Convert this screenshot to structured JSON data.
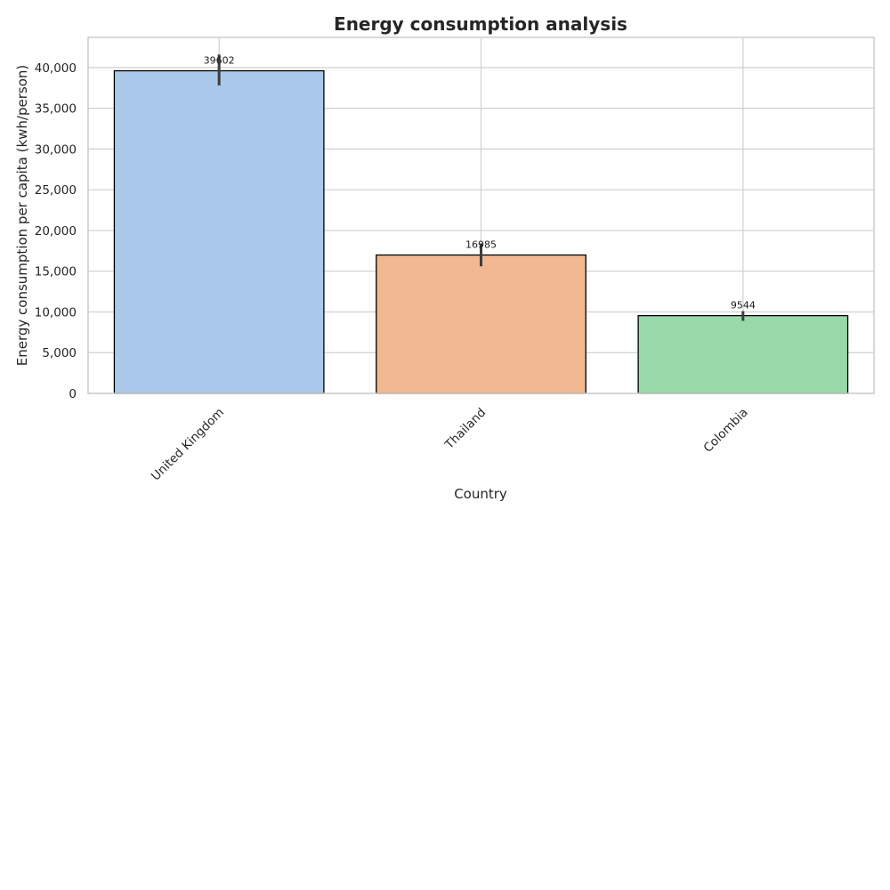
{
  "chart_data": {
    "type": "bar",
    "title": "Energy consumption analysis",
    "xlabel": "Country",
    "ylabel": "Energy consumption per capita (kwh/person)",
    "categories": [
      "United Kingdom",
      "Thailand",
      "Colombia"
    ],
    "values": [
      39602,
      16985,
      9544
    ],
    "value_labels": [
      "39602",
      "16985",
      "9544"
    ],
    "error_bars": [
      {
        "low": 37800,
        "high": 41600
      },
      {
        "low": 15600,
        "high": 18400
      },
      {
        "low": 8900,
        "high": 10100
      }
    ],
    "colors": [
      "#abc9ea",
      "#f1b892",
      "#98d9a8"
    ],
    "ylim": [
      0,
      43700
    ],
    "yticks": [
      0,
      5000,
      10000,
      15000,
      20000,
      25000,
      30000,
      35000,
      40000
    ],
    "ytick_labels": [
      "0",
      "5,000",
      "10,000",
      "15,000",
      "20,000",
      "25,000",
      "30,000",
      "35,000",
      "40,000"
    ],
    "grid": true,
    "legend": "none"
  }
}
